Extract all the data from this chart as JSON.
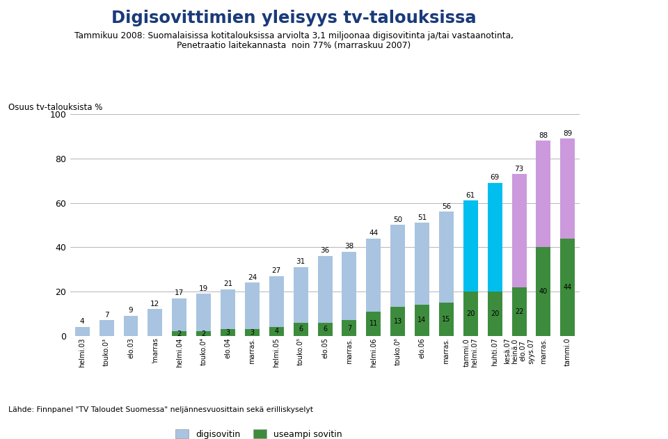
{
  "title": "Digisovittimien yleisyys tv-talouksissa",
  "subtitle1": "Tammikuu 2008: Suomalaisissa kotitalouksissa arviolta 3,1 miljoonaa digisovitinta ja/tai vastaanotinta,",
  "subtitle2": "Penetraatio laitekannasta  noin 77% (marraskuu 2007)",
  "ylabel": "Osuus tv-talouksista %",
  "footer": "Lähde: Finnpanel \"TV Taloudet Suomessa\" neljännesvuosittain sekä erilliskyselyt",
  "legend_digisovitin": "digisovitin",
  "legend_useampi": "useampi sovitin",
  "categories_display": [
    "helmi.03",
    "touko.0³",
    "elo.03",
    "'marras",
    "helmi.04",
    "touko.0⁴",
    "elo.04",
    "marras.",
    "helmi.05",
    "touko.0⁵",
    "elo.05",
    "marras.",
    "helmi.06",
    "touko.0⁶",
    "elo.06",
    "marras.",
    "tammi.0\nhelmi.07",
    "huhti.07",
    "kesä.07\nheinä.0\nelo.07\nsyys.07",
    "marras.",
    "tammi.0"
  ],
  "total_values": [
    4,
    7,
    9,
    12,
    17,
    19,
    21,
    24,
    27,
    31,
    36,
    38,
    44,
    50,
    51,
    56,
    61,
    69,
    73,
    88,
    89
  ],
  "green_values": [
    0,
    0,
    0,
    0,
    2,
    2,
    3,
    3,
    4,
    6,
    6,
    7,
    11,
    13,
    14,
    15,
    20,
    20,
    22,
    40,
    44
  ],
  "top_colors": [
    "#a8c4e0",
    "#a8c4e0",
    "#a8c4e0",
    "#a8c4e0",
    "#a8c4e0",
    "#a8c4e0",
    "#a8c4e0",
    "#a8c4e0",
    "#a8c4e0",
    "#a8c4e0",
    "#a8c4e0",
    "#a8c4e0",
    "#a8c4e0",
    "#a8c4e0",
    "#a8c4e0",
    "#a8c4e0",
    "#00bfef",
    "#00bfef",
    "#cc99dd",
    "#cc99dd",
    "#cc99dd"
  ],
  "green_color": "#5aaa3a",
  "dark_green_color": "#3d8c3d",
  "ylim": [
    0,
    100
  ],
  "background_color": "#ffffff",
  "right_strip_color": "#6aaa3a",
  "bottom_bar_color": "#1a3a6b",
  "grid_color": "#aaaaaa",
  "title_color": "#1a3a7a"
}
